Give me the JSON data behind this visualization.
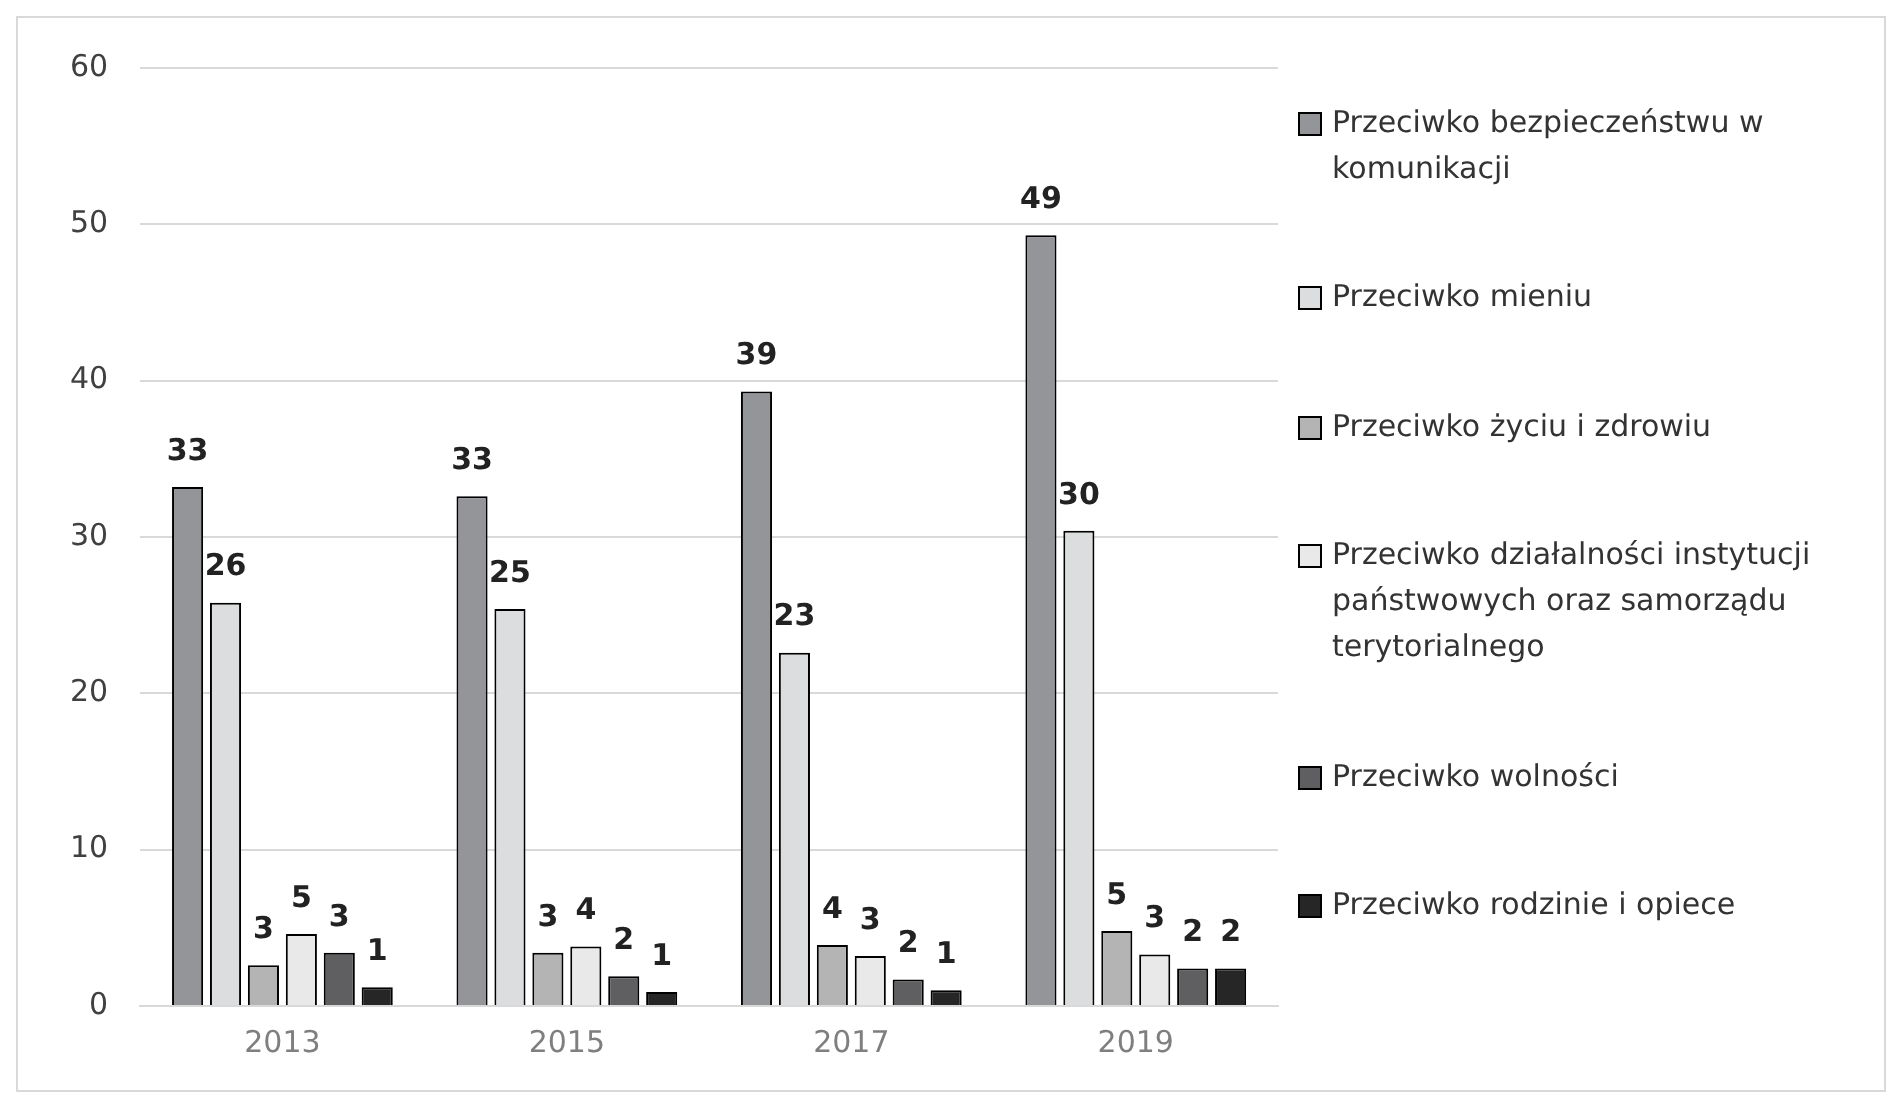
{
  "chart_data": {
    "type": "bar",
    "categories": [
      "2013",
      "2015",
      "2017",
      "2019"
    ],
    "series": [
      {
        "name": "Przeciwko bezpieczeństwu w komunikacji",
        "color": "#939598",
        "values": [
          33.2,
          32.6,
          39.3,
          49.3
        ],
        "value_labels": [
          "33",
          "33",
          "39",
          "49"
        ]
      },
      {
        "name": "Przeciwko mieniu",
        "color": "#dcdddf",
        "values": [
          25.8,
          25.4,
          22.6,
          30.4
        ],
        "value_labels": [
          "26",
          "25",
          "23",
          "30"
        ]
      },
      {
        "name": "Przeciwko życiu i zdrowiu",
        "color": "#b4b4b4",
        "values": [
          2.6,
          3.4,
          3.9,
          4.8
        ],
        "value_labels": [
          "3",
          "3",
          "4",
          "5"
        ]
      },
      {
        "name": "Przeciwko działalności instytucji państwowych oraz samorządu terytorialnego",
        "color": "#e9e9e9",
        "values": [
          4.6,
          3.8,
          3.2,
          3.3
        ],
        "value_labels": [
          "5",
          "4",
          "3",
          "3"
        ]
      },
      {
        "name": "Przeciwko wolności",
        "color": "#5f5f61",
        "values": [
          3.4,
          1.9,
          1.7,
          2.4
        ],
        "value_labels": [
          "3",
          "2",
          "2",
          "2"
        ]
      },
      {
        "name": "Przeciwko rodzinie i opiece",
        "color": "#262626",
        "values": [
          1.2,
          0.9,
          1.0,
          2.4
        ],
        "value_labels": [
          "1",
          "1",
          "1",
          "2"
        ]
      }
    ],
    "ylim": [
      0,
      60
    ],
    "yticks": [
      0,
      10,
      20,
      30,
      40,
      50,
      60
    ],
    "grid": "y",
    "legend": "right"
  }
}
